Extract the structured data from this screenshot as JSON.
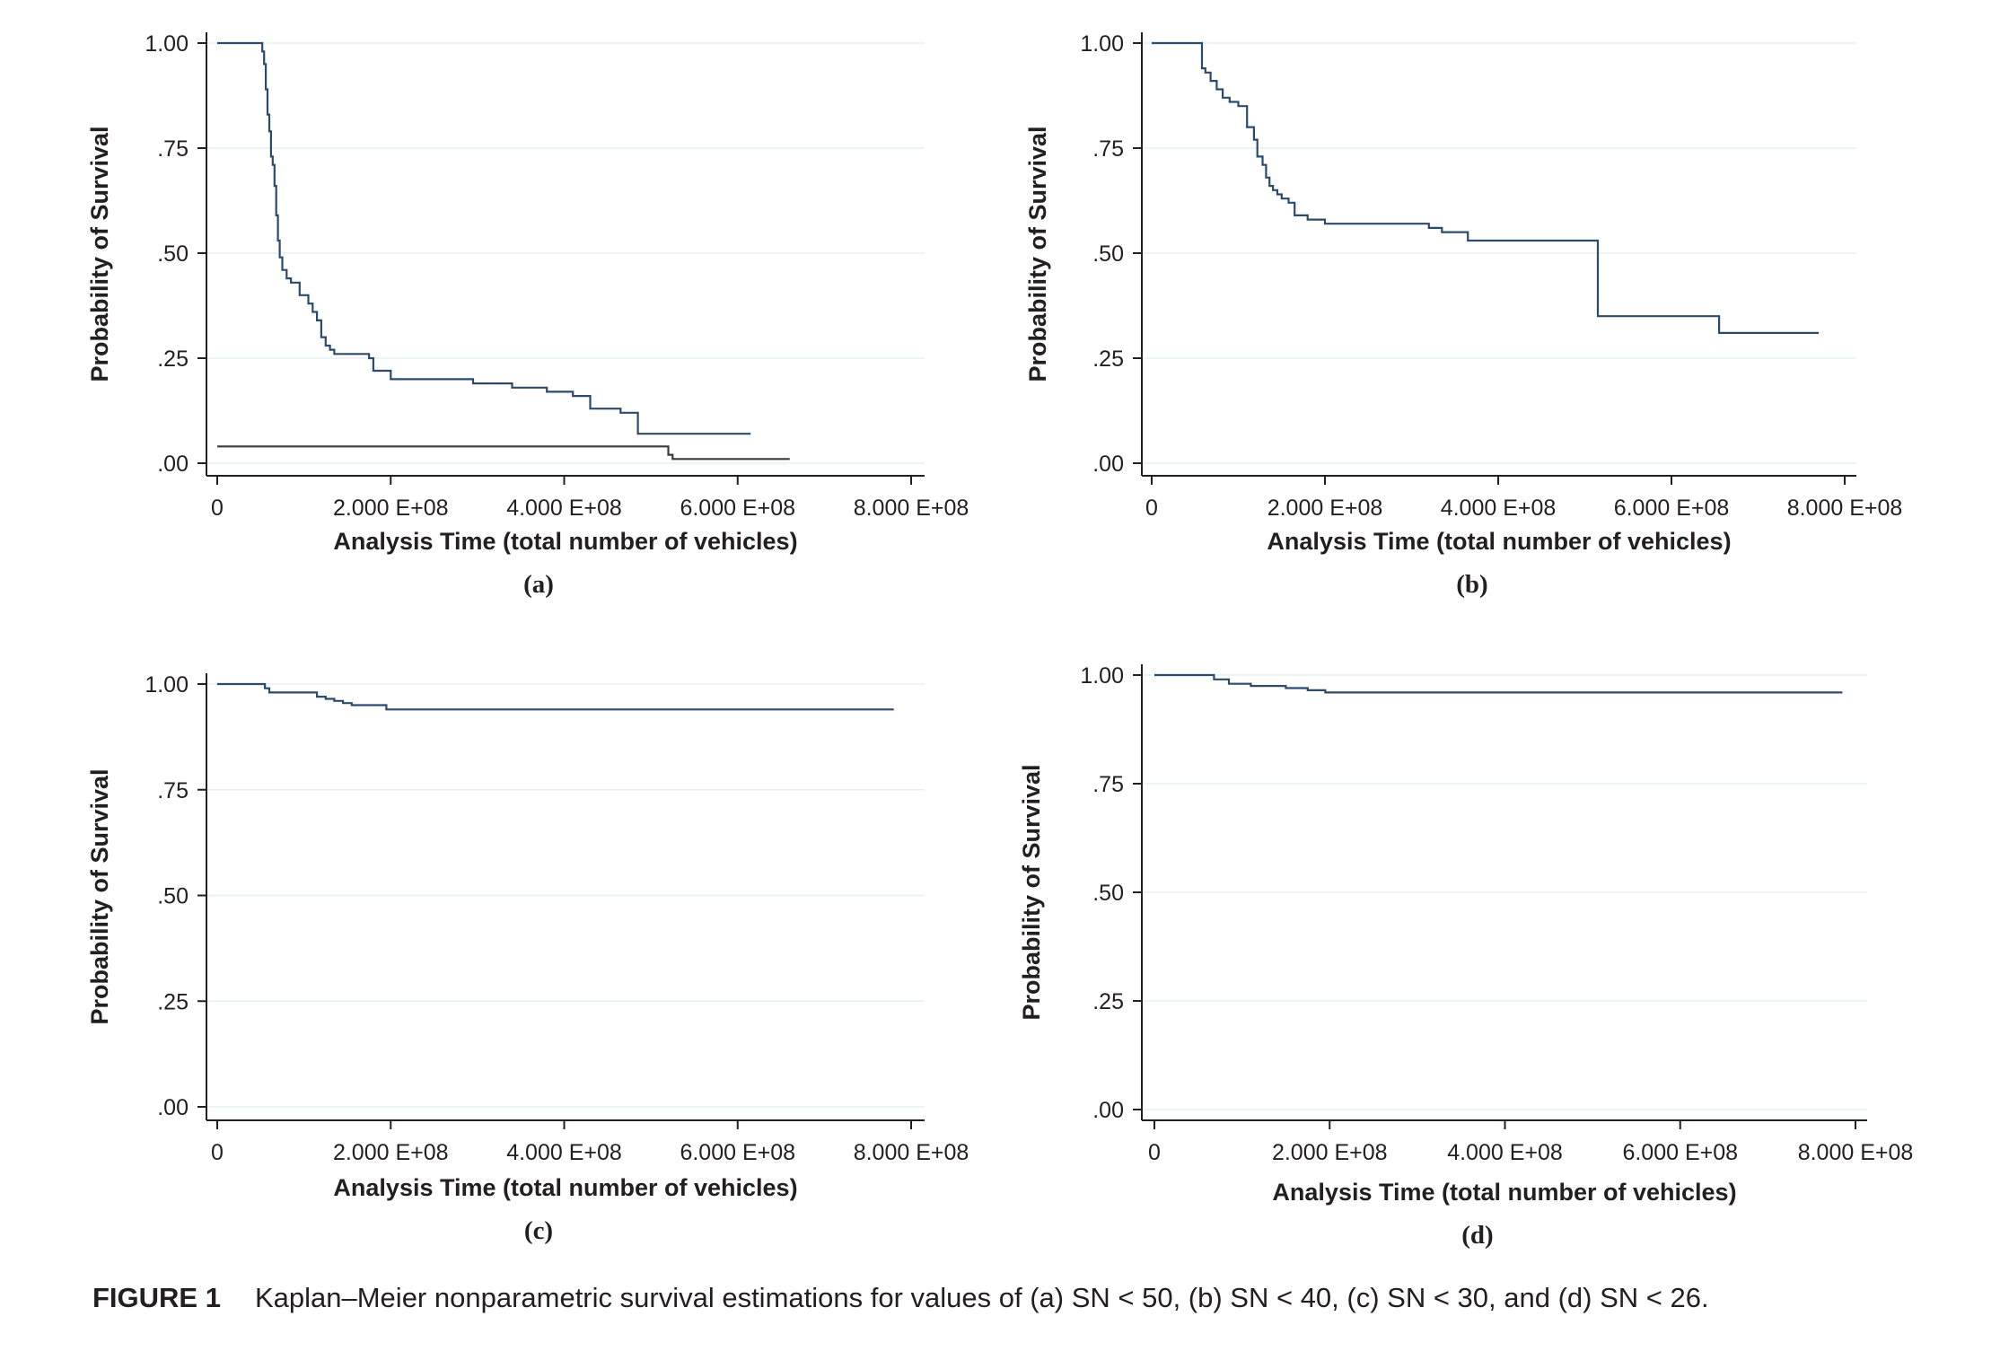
{
  "chart_data": [
    {
      "type": "line",
      "panel_label": "(a)",
      "xlabel": "Analysis Time (total number of vehicles)",
      "ylabel": "Probability of Survival",
      "xlim": [
        0,
        800000000
      ],
      "ylim": [
        0,
        1
      ],
      "x_ticks": [
        "0",
        "2.000 E+08",
        "4.000 E+08",
        "6.000 E+08",
        "8.000 E+08"
      ],
      "y_ticks": [
        ".00",
        ".25",
        ".50",
        ".75",
        "1.00"
      ],
      "grid": true,
      "series": [
        {
          "x": [
            0,
            52000000,
            54000000,
            56000000,
            58000000,
            60000000,
            62000000,
            64000000,
            66000000,
            68000000,
            70000000,
            72000000,
            75000000,
            80000000,
            85000000,
            95000000,
            105000000,
            110000000,
            115000000,
            120000000,
            125000000,
            130000000,
            135000000,
            150000000,
            175000000,
            180000000,
            200000000,
            295000000,
            340000000,
            380000000,
            410000000,
            430000000,
            465000000,
            485000000,
            615000000
          ],
          "y": [
            1.0,
            0.98,
            0.95,
            0.89,
            0.83,
            0.79,
            0.73,
            0.71,
            0.66,
            0.59,
            0.53,
            0.49,
            0.46,
            0.44,
            0.43,
            0.4,
            0.38,
            0.36,
            0.34,
            0.3,
            0.28,
            0.27,
            0.26,
            0.26,
            0.25,
            0.22,
            0.2,
            0.19,
            0.18,
            0.17,
            0.16,
            0.13,
            0.12,
            0.07,
            0.07
          ]
        },
        {
          "x": [
            0,
            515000000,
            520000000,
            525000000,
            660000000
          ],
          "y": [
            0.04,
            0.04,
            0.02,
            0.01,
            0.01
          ]
        }
      ]
    },
    {
      "type": "line",
      "panel_label": "(b)",
      "xlabel": "Analysis Time (total number of vehicles)",
      "ylabel": "Probability of Survival",
      "xlim": [
        0,
        800000000
      ],
      "ylim": [
        0,
        1
      ],
      "x_ticks": [
        "0",
        "2.000 E+08",
        "4.000 E+08",
        "6.000 E+08",
        "8.000 E+08"
      ],
      "y_ticks": [
        ".00",
        ".25",
        ".50",
        ".75",
        "1.00"
      ],
      "grid": true,
      "series": [
        {
          "x": [
            0,
            58000000,
            62000000,
            68000000,
            75000000,
            82000000,
            90000000,
            100000000,
            110000000,
            118000000,
            122000000,
            128000000,
            132000000,
            136000000,
            140000000,
            145000000,
            150000000,
            158000000,
            165000000,
            180000000,
            200000000,
            230000000,
            320000000,
            335000000,
            365000000,
            370000000,
            515000000,
            655000000,
            770000000
          ],
          "y": [
            1.0,
            0.94,
            0.93,
            0.91,
            0.89,
            0.87,
            0.86,
            0.85,
            0.8,
            0.77,
            0.73,
            0.71,
            0.68,
            0.66,
            0.65,
            0.64,
            0.63,
            0.62,
            0.59,
            0.58,
            0.57,
            0.57,
            0.56,
            0.55,
            0.53,
            0.53,
            0.35,
            0.31,
            0.31
          ]
        }
      ]
    },
    {
      "type": "line",
      "panel_label": "(c)",
      "xlabel": "Analysis Time (total number of vehicles)",
      "ylabel": "Probability of Survival",
      "xlim": [
        0,
        800000000
      ],
      "ylim": [
        0,
        1
      ],
      "x_ticks": [
        "0",
        "2.000 E+08",
        "4.000 E+08",
        "6.000 E+08",
        "8.000 E+08"
      ],
      "y_ticks": [
        ".00",
        ".25",
        ".50",
        ".75",
        "1.00"
      ],
      "grid": true,
      "series": [
        {
          "x": [
            0,
            55000000,
            60000000,
            90000000,
            115000000,
            125000000,
            135000000,
            145000000,
            155000000,
            195000000,
            780000000
          ],
          "y": [
            1.0,
            0.99,
            0.98,
            0.98,
            0.97,
            0.965,
            0.96,
            0.955,
            0.95,
            0.94,
            0.94
          ]
        }
      ]
    },
    {
      "type": "line",
      "panel_label": "(d)",
      "xlabel": "Analysis Time (total number of vehicles)",
      "ylabel": "Probability of Survival",
      "xlim": [
        0,
        800000000
      ],
      "ylim": [
        0,
        1
      ],
      "x_ticks": [
        "0",
        "2.000 E+08",
        "4.000 E+08",
        "6.000 E+08",
        "8.000 E+08"
      ],
      "y_ticks": [
        ".00",
        ".25",
        ".50",
        ".75",
        "1.00"
      ],
      "grid": true,
      "series": [
        {
          "x": [
            0,
            68000000,
            85000000,
            110000000,
            150000000,
            175000000,
            195000000,
            785000000
          ],
          "y": [
            1.0,
            0.99,
            0.98,
            0.975,
            0.97,
            0.965,
            0.96,
            0.96
          ]
        }
      ]
    }
  ],
  "caption": {
    "figure_number": "FIGURE 1",
    "text": "Kaplan–Meier nonparametric survival estimations for values of (a) SN < 50, (b) SN < 40, (c) SN < 30, and (d) SN < 26."
  },
  "colors": {
    "survival_line": "#2c4a6b",
    "secondary_line": "#3a3a3a",
    "grid": "#e6f0f0",
    "axis": "#231f20"
  }
}
